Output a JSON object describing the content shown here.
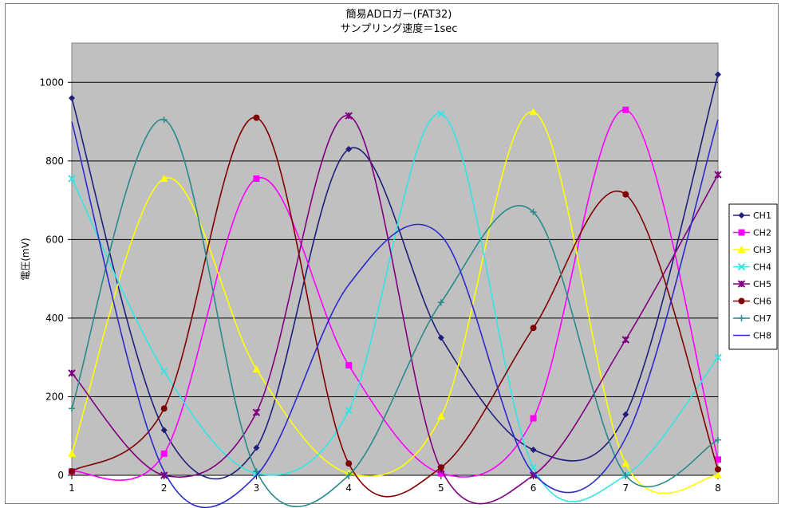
{
  "chart_data": {
    "type": "line",
    "title": "簡易ADロガー(FAT32)",
    "subtitle": "サンプリング速度＝1sec",
    "xlabel": "",
    "ylabel": "電圧(mV)",
    "xlim": [
      1,
      8
    ],
    "ylim": [
      0,
      1100
    ],
    "x_ticks": [
      "1",
      "2",
      "3",
      "4",
      "5",
      "6",
      "7",
      "8"
    ],
    "y_ticks": [
      "0",
      "200",
      "400",
      "600",
      "800",
      "1000"
    ],
    "grid": "horizontal",
    "legend_position": "right",
    "x": [
      1,
      2,
      3,
      4,
      5,
      6,
      7,
      8
    ],
    "series": [
      {
        "name": "CH1",
        "color": "#1f1f7a",
        "marker": "diamond",
        "values": [
          960,
          115,
          70,
          830,
          350,
          65,
          155,
          1020
        ]
      },
      {
        "name": "CH2",
        "color": "#ff00ff",
        "marker": "square",
        "values": [
          10,
          55,
          755,
          280,
          5,
          145,
          930,
          40
        ]
      },
      {
        "name": "CH3",
        "color": "#ffff00",
        "marker": "triangle",
        "values": [
          55,
          755,
          270,
          5,
          150,
          925,
          30,
          0
        ]
      },
      {
        "name": "CH4",
        "color": "#33e5e5",
        "marker": "x",
        "values": [
          755,
          265,
          5,
          165,
          920,
          20,
          0,
          300
        ]
      },
      {
        "name": "CH5",
        "color": "#800080",
        "marker": "star",
        "values": [
          260,
          0,
          160,
          915,
          15,
          0,
          345,
          765
        ]
      },
      {
        "name": "CH6",
        "color": "#800000",
        "marker": "circle",
        "values": [
          10,
          170,
          910,
          30,
          20,
          375,
          715,
          15
        ]
      },
      {
        "name": "CH7",
        "color": "#2a8a8a",
        "marker": "plus",
        "values": [
          170,
          905,
          10,
          0,
          440,
          670,
          0,
          90
        ]
      },
      {
        "name": "CH8",
        "color": "#2b2bcc",
        "marker": "none",
        "values": [
          900,
          10,
          0,
          485,
          610,
          5,
          95,
          905
        ]
      }
    ]
  }
}
